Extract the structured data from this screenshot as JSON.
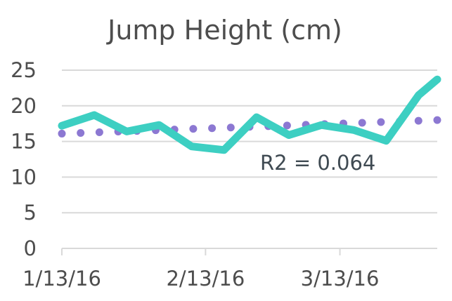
{
  "chart_data": {
    "type": "line",
    "title": "Jump Height (cm)",
    "xlabel": "",
    "ylabel": "",
    "ylim": [
      0,
      25
    ],
    "yticks": [
      "0",
      "5",
      "10",
      "15",
      "20",
      "25"
    ],
    "xlim": [
      "2016-01-13",
      "2016-04-03"
    ],
    "x_tick_labels": [
      {
        "date": "2016-01-13",
        "label": "1/13/16"
      },
      {
        "date": "2016-02-13",
        "label": "2/13/16"
      },
      {
        "date": "2016-03-13",
        "label": "3/13/16"
      }
    ],
    "grid": true,
    "series": [
      {
        "color": "#3dcfc2",
        "x": [
          "2016-01-13",
          "2016-01-20",
          "2016-01-27",
          "2016-02-03",
          "2016-02-10",
          "2016-02-17",
          "2016-02-24",
          "2016-03-02",
          "2016-03-09",
          "2016-03-16",
          "2016-03-23",
          "2016-03-30",
          "2016-04-03"
        ],
        "y": [
          17.2,
          18.7,
          16.4,
          17.3,
          14.3,
          13.8,
          18.4,
          15.9,
          17.3,
          16.6,
          15.1,
          21.5,
          23.7
        ]
      },
      {
        "color": "#8c78d2",
        "style": "dotted trendline",
        "x": [
          "2016-01-13",
          "2016-04-03"
        ],
        "y": [
          16.1,
          18.0
        ]
      }
    ],
    "annotation": "R2 = 0.064"
  }
}
